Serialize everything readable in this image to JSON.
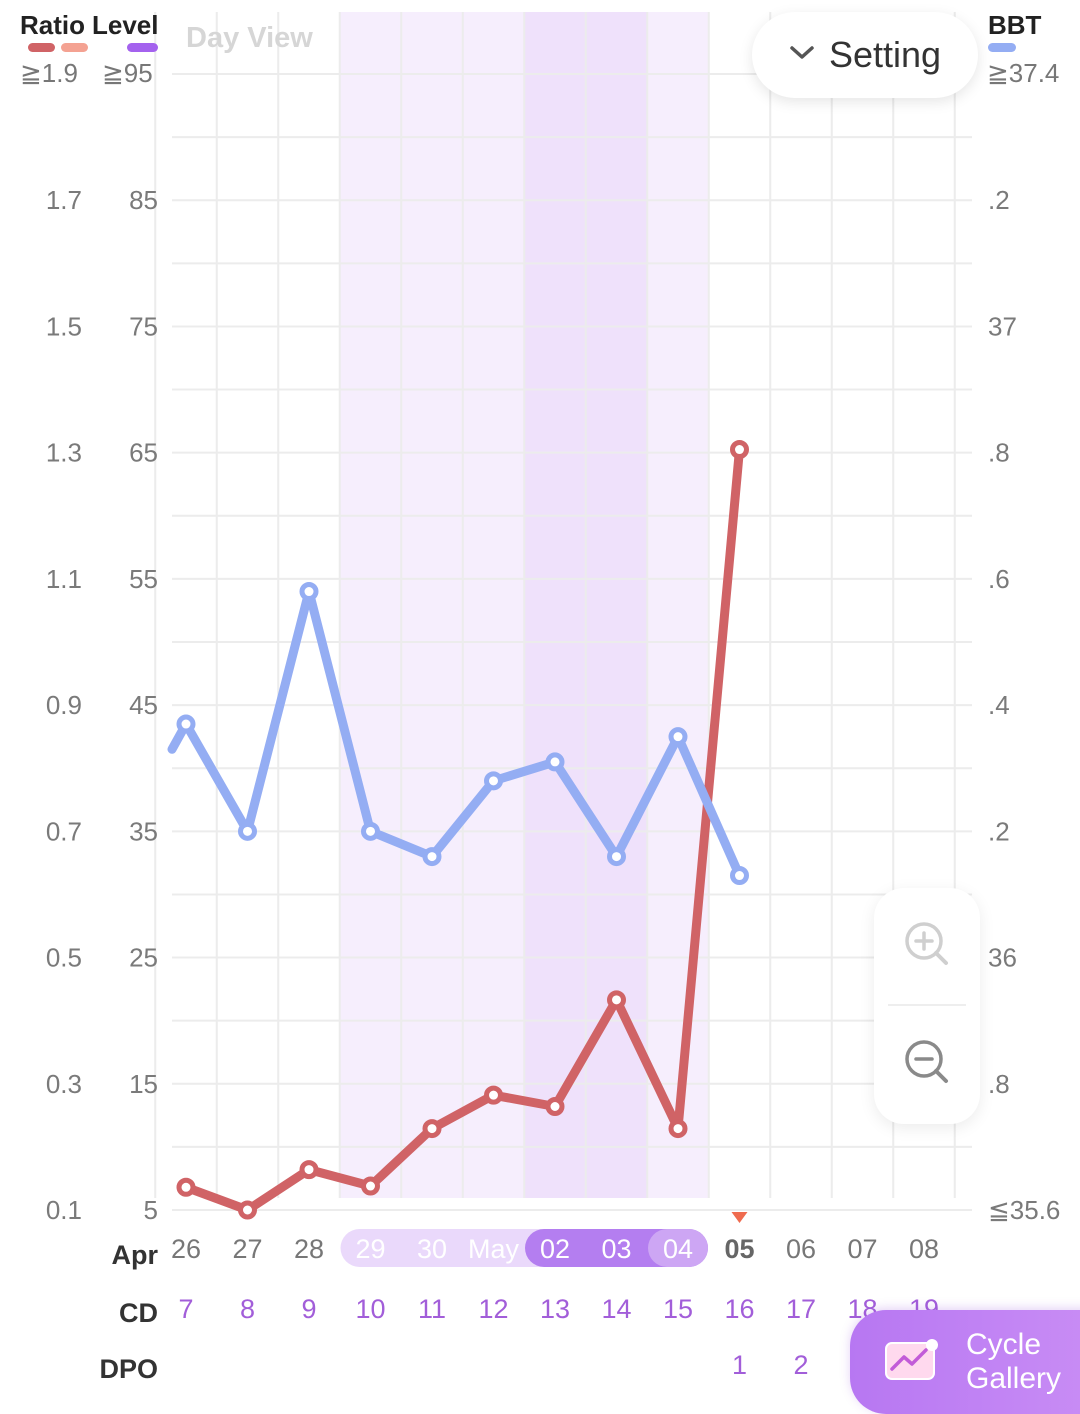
{
  "legend": {
    "ratio_title": "Ratio",
    "level_title": "Level",
    "bbt_title": "BBT",
    "ratio_max": "≧1.9",
    "level_max": "≧95",
    "bbt_max": "≧37.4",
    "ratio_colors": [
      "#d06366",
      "#f4a292"
    ],
    "level_color": "#a462ee",
    "bbt_color": "#94adf3"
  },
  "header": {
    "view_label": "Day View",
    "setting_label": "Setting",
    "setting_icon": "chevron-down-icon"
  },
  "zoom": {
    "zoom_in_icon": "zoom-in-icon",
    "zoom_out_icon": "zoom-out-icon"
  },
  "rows": {
    "month_label": "Apr",
    "cd_label": "CD",
    "dpo_label": "DPO"
  },
  "cycle_gallery": {
    "label_line1": "Cycle",
    "label_line2": "Gallery",
    "icon": "line-chart-icon"
  },
  "chart_data": {
    "type": "line",
    "x_labels": [
      "26",
      "27",
      "28",
      "29",
      "30",
      "May",
      "02",
      "03",
      "04",
      "05",
      "06",
      "07",
      "08"
    ],
    "cycle_days": [
      "7",
      "8",
      "9",
      "10",
      "11",
      "12",
      "13",
      "14",
      "15",
      "16",
      "17",
      "18",
      "19"
    ],
    "dpo": [
      "",
      "",
      "",
      "",
      "",
      "",
      "",
      "",
      "",
      "1",
      "2",
      "",
      ""
    ],
    "today_index": 9,
    "y_left_ratio_ticks": [
      "0.1",
      "0.3",
      "0.5",
      "0.7",
      "0.9",
      "1.1",
      "1.3",
      "1.5",
      "1.7"
    ],
    "y_left_level_ticks": [
      "5",
      "15",
      "25",
      "35",
      "45",
      "55",
      "65",
      "75",
      "85"
    ],
    "y_right_bbt_ticks": [
      "≦35.6",
      ".8",
      "36",
      ".2",
      ".4",
      ".6",
      ".8",
      "37",
      ".2"
    ],
    "ratio_ylim": [
      0.1,
      1.9
    ],
    "level_ylim": [
      5,
      95
    ],
    "bbt_ylim": [
      35.6,
      37.4
    ],
    "fertile_window": {
      "light_indices": [
        3,
        4,
        5,
        8
      ],
      "dark_indices": [
        6,
        7
      ]
    },
    "series": [
      {
        "axis": "ratio",
        "color": "#d06366",
        "values": [
          0.136,
          0.1,
          0.164,
          0.138,
          0.229,
          0.282,
          0.264,
          0.433,
          0.229,
          1.305
        ]
      },
      {
        "axis": "bbt",
        "color": "#94adf3",
        "values": [
          36.37,
          36.2,
          36.58,
          36.2,
          36.16,
          36.28,
          36.31,
          36.16,
          36.35,
          36.13
        ]
      }
    ]
  }
}
